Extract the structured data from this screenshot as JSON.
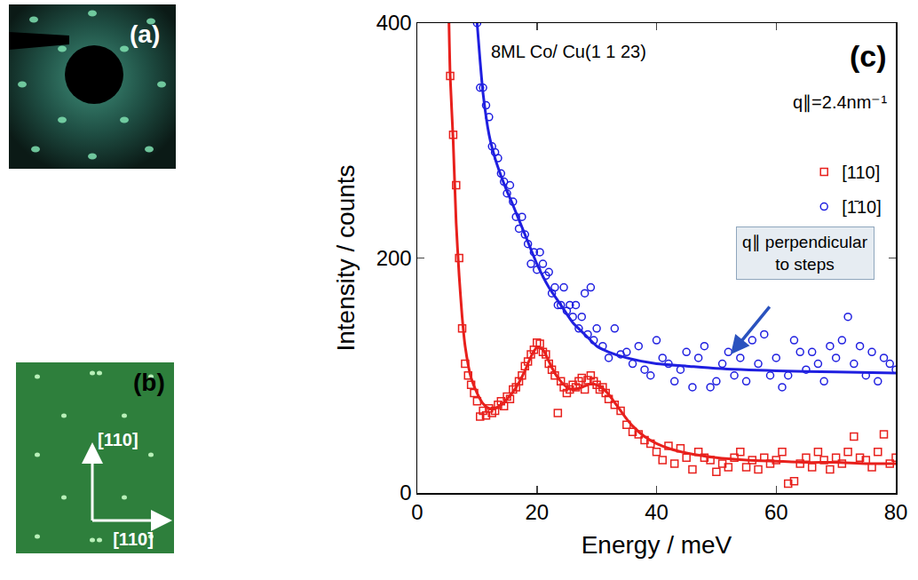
{
  "panels": {
    "a": {
      "label": "(a)"
    },
    "b": {
      "label": "(b)",
      "arrow_up": "[110]",
      "arrow_right": "[110]"
    }
  },
  "chart_data": {
    "type": "scatter",
    "label": "(c)",
    "annotations": [
      "8ML Co/ Cu(1 1 23)",
      "q∥=2.4nm⁻¹",
      "q∥ perpendicular to steps"
    ],
    "xlabel": "Energy / meV",
    "ylabel": "Intensity / counts",
    "xlim": [
      0,
      80
    ],
    "xticks": [
      0,
      20,
      40,
      60,
      80
    ],
    "ylim": [
      0,
      400
    ],
    "yticks": [
      0,
      200,
      400
    ],
    "grid": false,
    "legend": "center right",
    "series": [
      {
        "name": "[110]",
        "color": "#e8201c",
        "marker": "square",
        "line_style": "solid",
        "x": [
          5.5,
          6,
          6.5,
          7,
          7.5,
          8,
          8.5,
          9,
          9.5,
          10,
          10.5,
          11,
          11.5,
          12,
          12.5,
          13,
          13.5,
          14,
          14.5,
          15,
          15.5,
          16,
          16.5,
          17,
          17.5,
          18,
          18.5,
          19,
          19.5,
          20,
          20.5,
          21,
          21.5,
          22,
          22.5,
          23,
          23.5,
          24,
          24.5,
          25,
          25.5,
          26,
          26.5,
          27,
          27.5,
          28,
          28.5,
          29,
          29.5,
          30,
          30.5,
          31,
          31.5,
          32,
          33,
          34,
          35,
          36,
          37,
          38,
          39,
          40,
          41,
          42,
          43,
          44,
          45,
          46,
          47,
          48,
          49,
          50,
          51,
          52,
          53,
          54,
          55,
          56,
          57,
          58,
          59,
          60,
          61,
          62,
          63,
          64,
          65,
          66,
          67,
          68,
          69,
          70,
          71,
          72,
          73,
          74,
          75,
          76,
          77,
          78,
          79,
          80
        ],
        "values": [
          355,
          305,
          262,
          200,
          140,
          110,
          100,
          92,
          85,
          78,
          65,
          70,
          66,
          72,
          68,
          70,
          75,
          78,
          74,
          82,
          80,
          88,
          90,
          95,
          100,
          108,
          112,
          118,
          122,
          128,
          127,
          120,
          118,
          110,
          105,
          100,
          68,
          95,
          90,
          85,
          88,
          92,
          90,
          95,
          98,
          88,
          96,
          100,
          95,
          92,
          88,
          90,
          85,
          80,
          75,
          70,
          58,
          52,
          50,
          45,
          42,
          35,
          28,
          40,
          25,
          38,
          30,
          20,
          35,
          30,
          28,
          18,
          25,
          22,
          30,
          35,
          22,
          28,
          20,
          30,
          25,
          28,
          35,
          8,
          10,
          25,
          30,
          22,
          35,
          28,
          20,
          30,
          25,
          35,
          48,
          30,
          28,
          22,
          35,
          50,
          25,
          30
        ],
        "fit": {
          "x": [
            5.3,
            5.5,
            6,
            6.5,
            7,
            7.5,
            8,
            9,
            10,
            11,
            12,
            13,
            14,
            15,
            16,
            17,
            18,
            19,
            20,
            21,
            22,
            23,
            24,
            25,
            26,
            27,
            28,
            29,
            30,
            31,
            32,
            33,
            34,
            35,
            36,
            38,
            40,
            42,
            45,
            50,
            55,
            60,
            65,
            70,
            75,
            80
          ],
          "values": [
            400,
            355,
            300,
            230,
            185,
            150,
            125,
            98,
            85,
            76,
            72,
            72,
            75,
            80,
            86,
            94,
            104,
            116,
            124,
            122,
            112,
            102,
            95,
            90,
            88,
            89,
            91,
            93,
            92,
            89,
            84,
            77,
            70,
            63,
            57,
            48,
            42,
            38,
            34,
            30,
            28,
            27,
            26,
            26,
            25,
            25
          ]
        }
      },
      {
        "name": "[1̄10]",
        "color": "#1f1fe0",
        "marker": "circle",
        "line_style": "solid",
        "x": [
          10,
          10.5,
          11,
          11.5,
          12,
          12.5,
          13,
          13.5,
          14,
          14.5,
          15,
          15.5,
          16,
          16.5,
          17,
          17.5,
          18,
          18.5,
          19,
          19.5,
          20,
          20.5,
          21,
          21.5,
          22,
          22.5,
          23,
          23.5,
          24,
          24.5,
          25,
          25.5,
          26,
          26.5,
          27,
          27.5,
          28,
          28.5,
          29,
          29.5,
          30,
          31,
          32,
          33,
          34,
          35,
          36,
          37,
          38,
          39,
          40,
          41,
          42,
          43,
          44,
          45,
          46,
          47,
          48,
          49,
          50,
          51,
          52,
          53,
          54,
          55,
          56,
          57,
          58,
          59,
          60,
          61,
          62,
          63,
          64,
          65,
          66,
          67,
          68,
          69,
          70,
          71,
          72,
          73,
          74,
          75,
          76,
          77,
          78,
          79,
          80
        ],
        "values": [
          400,
          345,
          345,
          330,
          320,
          295,
          290,
          285,
          272,
          265,
          255,
          262,
          248,
          235,
          225,
          235,
          220,
          212,
          195,
          205,
          190,
          205,
          195,
          185,
          188,
          170,
          175,
          160,
          160,
          175,
          155,
          160,
          150,
          160,
          140,
          150,
          170,
          135,
          175,
          130,
          140,
          125,
          115,
          140,
          118,
          120,
          110,
          125,
          105,
          100,
          130,
          115,
          110,
          95,
          105,
          120,
          90,
          115,
          125,
          90,
          95,
          110,
          120,
          100,
          115,
          95,
          130,
          110,
          135,
          100,
          115,
          90,
          100,
          130,
          120,
          105,
          120,
          110,
          95,
          125,
          115,
          130,
          150,
          110,
          125,
          100,
          120,
          95,
          115,
          110,
          105
        ],
        "fit": {
          "x": [
            10,
            10.5,
            11,
            12,
            13,
            14,
            15,
            16,
            18,
            20,
            22,
            24,
            26,
            28,
            30,
            32,
            35,
            40,
            45,
            50,
            60,
            70,
            80
          ],
          "values": [
            400,
            368,
            340,
            305,
            285,
            270,
            257,
            245,
            220,
            195,
            175,
            160,
            145,
            135,
            125,
            120,
            115,
            110,
            108,
            106,
            104,
            103,
            102
          ]
        }
      }
    ]
  }
}
